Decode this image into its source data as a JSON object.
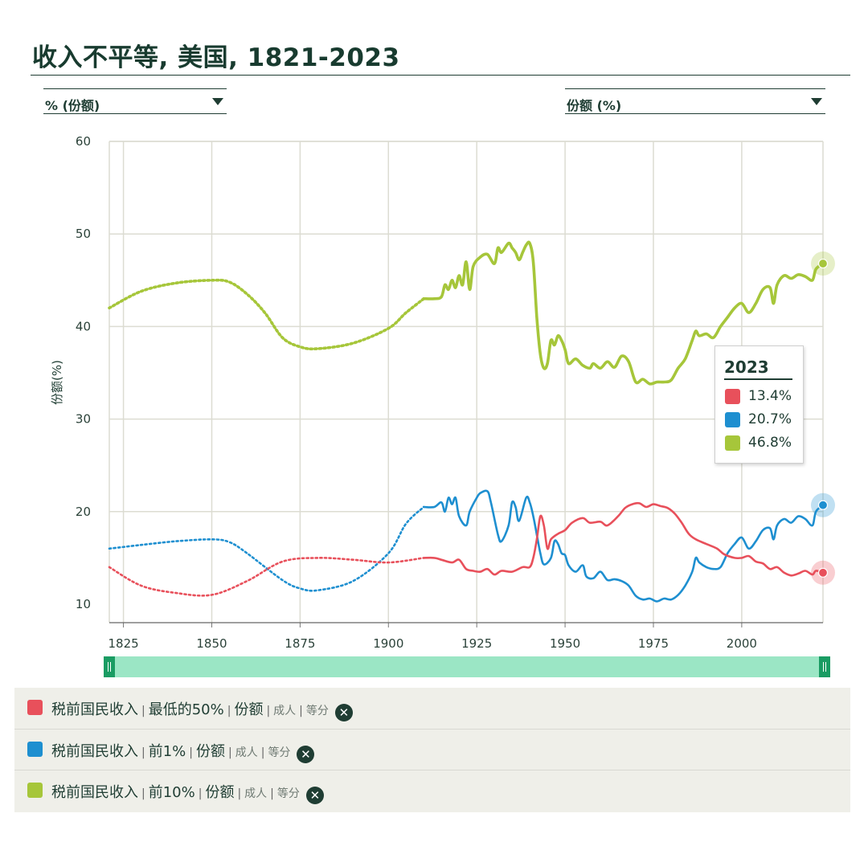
{
  "title": "收入不平等, 美国, 1821-2023",
  "left_dropdown": {
    "label": "% (份额)"
  },
  "right_dropdown": {
    "label": "份额 (%)"
  },
  "colors": {
    "bottom50": "#e8505b",
    "top1": "#1e8fd0",
    "top10": "#a6c63a",
    "grid": "#dcdcd2",
    "axis": "#1f3d33"
  },
  "tooltip": {
    "year": "2023",
    "rows": [
      {
        "value": "13.4%",
        "color": "#e8505b"
      },
      {
        "value": "20.7%",
        "color": "#1e8fd0"
      },
      {
        "value": "46.8%",
        "color": "#a6c63a"
      }
    ]
  },
  "legend": [
    {
      "name": "税前国民收入",
      "group": "最低的50%",
      "measure": "份额",
      "pop": "成人",
      "unit": "等分",
      "color": "#e8505b"
    },
    {
      "name": "税前国民收入",
      "group": "前1%",
      "measure": "份额",
      "pop": "成人",
      "unit": "等分",
      "color": "#1e8fd0"
    },
    {
      "name": "税前国民收入",
      "group": "前10%",
      "measure": "份额",
      "pop": "成人",
      "unit": "等分",
      "color": "#a6c63a"
    }
  ],
  "chart_data": {
    "type": "line",
    "title": "收入不平等, 美国, 1821-2023",
    "xlabel": "",
    "ylabel": "份额(%)",
    "xlim": [
      1821,
      2023
    ],
    "ylim": [
      8,
      60
    ],
    "x_ticks": [
      1825,
      1850,
      1875,
      1900,
      1925,
      1950,
      1975,
      2000
    ],
    "y_ticks": [
      10,
      20,
      30,
      40,
      50,
      60
    ],
    "grid": true,
    "legend_position": "bottom",
    "series": [
      {
        "name": "税前国民收入 | 最低的50% | 份额",
        "color": "#e8505b",
        "dotted": [
          [
            1821,
            14
          ],
          [
            1830,
            12
          ],
          [
            1840,
            11.2
          ],
          [
            1850,
            11
          ],
          [
            1860,
            12.5
          ],
          [
            1870,
            14.6
          ],
          [
            1880,
            15
          ],
          [
            1890,
            14.8
          ],
          [
            1900,
            14.5
          ],
          [
            1910,
            15
          ]
        ],
        "solid": [
          [
            1910,
            15
          ],
          [
            1913,
            15
          ],
          [
            1915,
            14.8
          ],
          [
            1918,
            14.5
          ],
          [
            1920,
            14.8
          ],
          [
            1922,
            13.8
          ],
          [
            1924,
            13.6
          ],
          [
            1926,
            13.5
          ],
          [
            1928,
            13.8
          ],
          [
            1930,
            13.2
          ],
          [
            1932,
            13.6
          ],
          [
            1935,
            13.5
          ],
          [
            1938,
            14
          ],
          [
            1940,
            14
          ],
          [
            1941,
            15
          ],
          [
            1942,
            17
          ],
          [
            1943,
            19.5
          ],
          [
            1944,
            18.5
          ],
          [
            1945,
            16
          ],
          [
            1946,
            17
          ],
          [
            1948,
            17.6
          ],
          [
            1950,
            18
          ],
          [
            1952,
            18.8
          ],
          [
            1955,
            19.3
          ],
          [
            1957,
            18.8
          ],
          [
            1960,
            18.9
          ],
          [
            1962,
            18.5
          ],
          [
            1965,
            19.5
          ],
          [
            1967,
            20.4
          ],
          [
            1969,
            20.8
          ],
          [
            1971,
            20.9
          ],
          [
            1973,
            20.5
          ],
          [
            1975,
            20.8
          ],
          [
            1977,
            20.6
          ],
          [
            1979,
            20.4
          ],
          [
            1981,
            19.8
          ],
          [
            1983,
            18.8
          ],
          [
            1985,
            17.6
          ],
          [
            1987,
            17
          ],
          [
            1990,
            16.5
          ],
          [
            1993,
            16
          ],
          [
            1995,
            15.4
          ],
          [
            1998,
            15
          ],
          [
            2000,
            15
          ],
          [
            2002,
            15.2
          ],
          [
            2004,
            14.6
          ],
          [
            2006,
            14.4
          ],
          [
            2008,
            13.8
          ],
          [
            2010,
            14
          ],
          [
            2012,
            13.4
          ],
          [
            2014,
            13.1
          ],
          [
            2016,
            13.3
          ],
          [
            2018,
            13.6
          ],
          [
            2020,
            13.2
          ],
          [
            2021,
            13.6
          ],
          [
            2023,
            13.4
          ]
        ]
      },
      {
        "name": "税前国民收入 | 前1% | 份额",
        "color": "#1e8fd0",
        "dotted": [
          [
            1821,
            16
          ],
          [
            1830,
            16.4
          ],
          [
            1840,
            16.8
          ],
          [
            1850,
            17
          ],
          [
            1855,
            16.7
          ],
          [
            1860,
            15.5
          ],
          [
            1870,
            12.6
          ],
          [
            1875,
            11.7
          ],
          [
            1880,
            11.5
          ],
          [
            1890,
            12.5
          ],
          [
            1900,
            15.5
          ],
          [
            1905,
            18.7
          ],
          [
            1910,
            20.5
          ]
        ],
        "solid": [
          [
            1910,
            20.5
          ],
          [
            1913,
            20.5
          ],
          [
            1915,
            21
          ],
          [
            1916,
            20
          ],
          [
            1917,
            21.5
          ],
          [
            1918,
            20.8
          ],
          [
            1919,
            21.5
          ],
          [
            1920,
            19.5
          ],
          [
            1922,
            18.5
          ],
          [
            1923,
            20
          ],
          [
            1925,
            21.5
          ],
          [
            1926,
            22
          ],
          [
            1928,
            22.2
          ],
          [
            1929,
            21
          ],
          [
            1931,
            17.5
          ],
          [
            1932,
            16.8
          ],
          [
            1934,
            18.5
          ],
          [
            1935,
            21
          ],
          [
            1936,
            20.5
          ],
          [
            1937,
            19
          ],
          [
            1939,
            21.5
          ],
          [
            1940,
            21
          ],
          [
            1941,
            19.5
          ],
          [
            1942,
            17.5
          ],
          [
            1943,
            15.5
          ],
          [
            1944,
            14.3
          ],
          [
            1946,
            15
          ],
          [
            1947,
            16.8
          ],
          [
            1948,
            16.5
          ],
          [
            1949,
            15.5
          ],
          [
            1950,
            15.3
          ],
          [
            1951,
            14.2
          ],
          [
            1953,
            13.5
          ],
          [
            1955,
            14.2
          ],
          [
            1956,
            13
          ],
          [
            1958,
            12.8
          ],
          [
            1960,
            13.5
          ],
          [
            1962,
            12.6
          ],
          [
            1964,
            12.7
          ],
          [
            1966,
            12.5
          ],
          [
            1968,
            12
          ],
          [
            1970,
            10.9
          ],
          [
            1972,
            10.5
          ],
          [
            1974,
            10.6
          ],
          [
            1976,
            10.3
          ],
          [
            1978,
            10.6
          ],
          [
            1980,
            10.5
          ],
          [
            1982,
            11
          ],
          [
            1984,
            12
          ],
          [
            1986,
            13.5
          ],
          [
            1987,
            15
          ],
          [
            1988,
            14.5
          ],
          [
            1990,
            14
          ],
          [
            1992,
            13.8
          ],
          [
            1994,
            14
          ],
          [
            1996,
            15.5
          ],
          [
            1998,
            16.5
          ],
          [
            2000,
            17.2
          ],
          [
            2002,
            16
          ],
          [
            2004,
            16.8
          ],
          [
            2006,
            18
          ],
          [
            2008,
            18.2
          ],
          [
            2009,
            17
          ],
          [
            2010,
            18.5
          ],
          [
            2012,
            19.2
          ],
          [
            2014,
            18.8
          ],
          [
            2016,
            19.5
          ],
          [
            2018,
            19.2
          ],
          [
            2020,
            18.5
          ],
          [
            2021,
            20
          ],
          [
            2023,
            20.7
          ]
        ]
      },
      {
        "name": "税前国民收入 | 前10% | 份额",
        "color": "#a6c63a",
        "dotted": [
          [
            1821,
            42
          ],
          [
            1830,
            43.8
          ],
          [
            1840,
            44.7
          ],
          [
            1850,
            45
          ],
          [
            1855,
            44.8
          ],
          [
            1860,
            43.5
          ],
          [
            1865,
            41.5
          ],
          [
            1870,
            38.8
          ],
          [
            1875,
            37.8
          ],
          [
            1880,
            37.6
          ],
          [
            1890,
            38.2
          ],
          [
            1900,
            39.8
          ],
          [
            1905,
            41.5
          ],
          [
            1910,
            43
          ]
        ],
        "solid": [
          [
            1910,
            43
          ],
          [
            1913,
            43
          ],
          [
            1915,
            43.2
          ],
          [
            1916,
            44.5
          ],
          [
            1917,
            44
          ],
          [
            1918,
            45
          ],
          [
            1919,
            44.2
          ],
          [
            1920,
            45.5
          ],
          [
            1921,
            44.5
          ],
          [
            1922,
            47
          ],
          [
            1923,
            44
          ],
          [
            1924,
            46.5
          ],
          [
            1926,
            47.5
          ],
          [
            1928,
            47.8
          ],
          [
            1930,
            46.8
          ],
          [
            1931,
            48.5
          ],
          [
            1932,
            48
          ],
          [
            1934,
            49
          ],
          [
            1935,
            48.5
          ],
          [
            1936,
            48
          ],
          [
            1937,
            47.2
          ],
          [
            1938,
            48
          ],
          [
            1939,
            48.8
          ],
          [
            1940,
            49
          ],
          [
            1941,
            47
          ],
          [
            1942,
            41
          ],
          [
            1943,
            37
          ],
          [
            1944,
            35.5
          ],
          [
            1945,
            36
          ],
          [
            1946,
            38.5
          ],
          [
            1947,
            38
          ],
          [
            1948,
            39
          ],
          [
            1949,
            38.5
          ],
          [
            1950,
            37.5
          ],
          [
            1951,
            36
          ],
          [
            1953,
            36.5
          ],
          [
            1955,
            35.8
          ],
          [
            1957,
            35.5
          ],
          [
            1958,
            36
          ],
          [
            1960,
            35.5
          ],
          [
            1962,
            36.2
          ],
          [
            1964,
            35.6
          ],
          [
            1966,
            36.8
          ],
          [
            1968,
            36.2
          ],
          [
            1970,
            34
          ],
          [
            1972,
            34.3
          ],
          [
            1974,
            33.8
          ],
          [
            1976,
            34
          ],
          [
            1978,
            34
          ],
          [
            1980,
            34.2
          ],
          [
            1982,
            35.5
          ],
          [
            1984,
            36.5
          ],
          [
            1986,
            38.5
          ],
          [
            1987,
            39.5
          ],
          [
            1988,
            39
          ],
          [
            1990,
            39.2
          ],
          [
            1992,
            38.8
          ],
          [
            1994,
            40
          ],
          [
            1996,
            41
          ],
          [
            1998,
            42
          ],
          [
            2000,
            42.5
          ],
          [
            2002,
            41.5
          ],
          [
            2004,
            42.5
          ],
          [
            2006,
            44
          ],
          [
            2008,
            44.2
          ],
          [
            2009,
            42.5
          ],
          [
            2010,
            44.5
          ],
          [
            2012,
            45.5
          ],
          [
            2014,
            45.2
          ],
          [
            2016,
            45.6
          ],
          [
            2018,
            45.4
          ],
          [
            2020,
            45
          ],
          [
            2021,
            46.2
          ],
          [
            2023,
            46.8
          ]
        ]
      }
    ]
  }
}
